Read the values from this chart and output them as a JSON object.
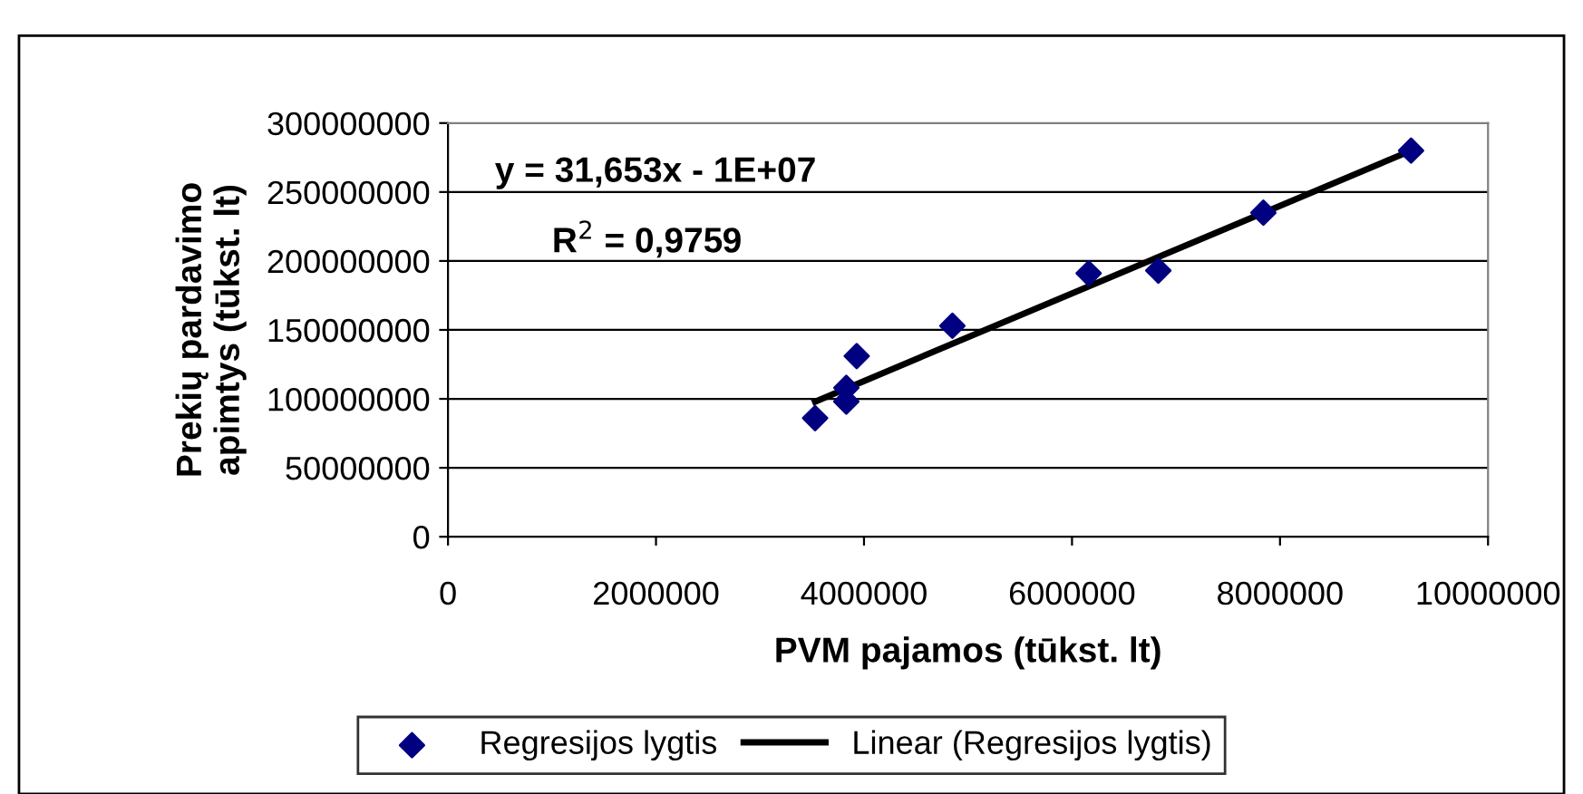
{
  "chart_data": {
    "type": "scatter",
    "xlabel": "PVM pajamos (tūkst. lt)",
    "ylabel": "Prekių pardavimo\napimtys (tūkst. lt)",
    "xlim": [
      0,
      10000000
    ],
    "xticks": [
      0,
      2000000,
      4000000,
      6000000,
      8000000,
      10000000
    ],
    "ylim": [
      0,
      300000000
    ],
    "yticks": [
      0,
      50000000,
      100000000,
      150000000,
      200000000,
      250000000,
      300000000
    ],
    "grid": "y",
    "legend": "bottom",
    "marker": "diamond",
    "annotations": [
      "y = 31,653x - 1E+07",
      "R$^{2}$ = 0,9759"
    ],
    "series": [
      {
        "name": "Regresijos lygtis",
        "color": "#000080",
        "x": [
          3530000,
          3830000,
          3830000,
          3930000,
          4850000,
          6160000,
          6830000,
          7840000,
          9260000
        ],
        "values": [
          86000000,
          98000000,
          108000000,
          131000000,
          153000000,
          191000000,
          193000000,
          235000000,
          280000000
        ]
      },
      {
        "name": "Linear (Regresijos lygtis)",
        "color": "#000000",
        "type": "line",
        "marker": "none",
        "x": [
          3530000,
          9260000
        ],
        "values": [
          98000000,
          280000000
        ]
      }
    ]
  }
}
